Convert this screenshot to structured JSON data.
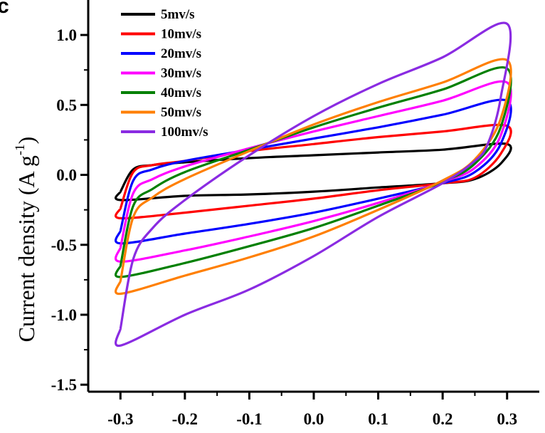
{
  "chart_data": {
    "type": "line",
    "panel_label": "c",
    "xlabel": "",
    "ylabel": "Current density (A g",
    "ylabel_sup": "-1",
    "ylabel_close": ")",
    "xlim": [
      -0.35,
      0.35
    ],
    "ylim": [
      -1.55,
      1.25
    ],
    "xticks": [
      -0.3,
      -0.2,
      -0.1,
      0.0,
      0.1,
      0.2,
      0.3
    ],
    "xtick_labels": [
      "-0.3",
      "-0.2",
      "-0.1",
      "0.0",
      "0.1",
      "0.2",
      "0.3"
    ],
    "yticks": [
      -1.5,
      -1.0,
      -0.5,
      0.0,
      0.5,
      1.0
    ],
    "ytick_labels": [
      "-1.5",
      "-1.0",
      "-0.5",
      "0.0",
      "0.5",
      "1.0"
    ],
    "grid": false,
    "legend_position": "top-left",
    "series": [
      {
        "name": "5mv/s",
        "color": "#000000",
        "anodic": [
          [
            -0.3,
            -0.12
          ],
          [
            -0.28,
            0.04
          ],
          [
            -0.25,
            0.07
          ],
          [
            -0.2,
            0.09
          ],
          [
            -0.1,
            0.12
          ],
          [
            0,
            0.14
          ],
          [
            0.1,
            0.16
          ],
          [
            0.2,
            0.18
          ],
          [
            0.3,
            0.22
          ]
        ],
        "cathodic": [
          [
            0.3,
            0.22
          ],
          [
            0.29,
            0.08
          ],
          [
            0.25,
            -0.03
          ],
          [
            0.2,
            -0.06
          ],
          [
            0.1,
            -0.09
          ],
          [
            0,
            -0.12
          ],
          [
            -0.1,
            -0.14
          ],
          [
            -0.2,
            -0.15
          ],
          [
            -0.3,
            -0.18
          ]
        ]
      },
      {
        "name": "10mv/s",
        "color": "#ff0000",
        "anodic": [
          [
            -0.3,
            -0.24
          ],
          [
            -0.28,
            0.02
          ],
          [
            -0.25,
            0.07
          ],
          [
            -0.2,
            0.1
          ],
          [
            -0.1,
            0.17
          ],
          [
            0,
            0.22
          ],
          [
            0.1,
            0.27
          ],
          [
            0.2,
            0.31
          ],
          [
            0.3,
            0.35
          ]
        ],
        "cathodic": [
          [
            0.3,
            0.35
          ],
          [
            0.29,
            0.15
          ],
          [
            0.25,
            -0.02
          ],
          [
            0.2,
            -0.06
          ],
          [
            0.1,
            -0.11
          ],
          [
            0,
            -0.17
          ],
          [
            -0.1,
            -0.22
          ],
          [
            -0.2,
            -0.27
          ],
          [
            -0.3,
            -0.31
          ]
        ]
      },
      {
        "name": "20mv/s",
        "color": "#0000ff",
        "anodic": [
          [
            -0.3,
            -0.4
          ],
          [
            -0.28,
            -0.04
          ],
          [
            -0.25,
            0.04
          ],
          [
            -0.2,
            0.1
          ],
          [
            -0.1,
            0.18
          ],
          [
            0,
            0.26
          ],
          [
            0.1,
            0.34
          ],
          [
            0.2,
            0.43
          ],
          [
            0.3,
            0.53
          ]
        ],
        "cathodic": [
          [
            0.3,
            0.53
          ],
          [
            0.29,
            0.22
          ],
          [
            0.25,
            0.02
          ],
          [
            0.2,
            -0.06
          ],
          [
            0.1,
            -0.17
          ],
          [
            0,
            -0.27
          ],
          [
            -0.1,
            -0.35
          ],
          [
            -0.2,
            -0.42
          ],
          [
            -0.3,
            -0.49
          ]
        ]
      },
      {
        "name": "30mv/s",
        "color": "#ff00ff",
        "anodic": [
          [
            -0.3,
            -0.52
          ],
          [
            -0.28,
            -0.13
          ],
          [
            -0.25,
            -0.03
          ],
          [
            -0.2,
            0.06
          ],
          [
            -0.1,
            0.19
          ],
          [
            0,
            0.31
          ],
          [
            0.1,
            0.42
          ],
          [
            0.2,
            0.53
          ],
          [
            0.3,
            0.66
          ]
        ],
        "cathodic": [
          [
            0.3,
            0.66
          ],
          [
            0.29,
            0.28
          ],
          [
            0.25,
            0.05
          ],
          [
            0.2,
            -0.05
          ],
          [
            0.1,
            -0.2
          ],
          [
            0,
            -0.33
          ],
          [
            -0.1,
            -0.44
          ],
          [
            -0.2,
            -0.54
          ],
          [
            -0.3,
            -0.62
          ]
        ]
      },
      {
        "name": "40mv/s",
        "color": "#008000",
        "anodic": [
          [
            -0.3,
            -0.65
          ],
          [
            -0.28,
            -0.22
          ],
          [
            -0.25,
            -0.1
          ],
          [
            -0.2,
            0.02
          ],
          [
            -0.1,
            0.18
          ],
          [
            0,
            0.34
          ],
          [
            0.1,
            0.48
          ],
          [
            0.2,
            0.61
          ],
          [
            0.3,
            0.76
          ]
        ],
        "cathodic": [
          [
            0.3,
            0.76
          ],
          [
            0.29,
            0.34
          ],
          [
            0.25,
            0.08
          ],
          [
            0.2,
            -0.05
          ],
          [
            0.1,
            -0.22
          ],
          [
            0,
            -0.38
          ],
          [
            -0.1,
            -0.51
          ],
          [
            -0.2,
            -0.63
          ],
          [
            -0.3,
            -0.73
          ]
        ]
      },
      {
        "name": "50mv/s",
        "color": "#ff7f00",
        "anodic": [
          [
            -0.3,
            -0.76
          ],
          [
            -0.28,
            -0.3
          ],
          [
            -0.25,
            -0.16
          ],
          [
            -0.2,
            -0.03
          ],
          [
            -0.1,
            0.17
          ],
          [
            0,
            0.36
          ],
          [
            0.1,
            0.52
          ],
          [
            0.2,
            0.66
          ],
          [
            0.3,
            0.82
          ]
        ],
        "cathodic": [
          [
            0.3,
            0.82
          ],
          [
            0.29,
            0.4
          ],
          [
            0.25,
            0.11
          ],
          [
            0.2,
            -0.04
          ],
          [
            0.1,
            -0.25
          ],
          [
            0,
            -0.44
          ],
          [
            -0.1,
            -0.59
          ],
          [
            -0.2,
            -0.72
          ],
          [
            -0.3,
            -0.85
          ]
        ]
      },
      {
        "name": "100mv/s",
        "color": "#8a2be2",
        "anodic": [
          [
            -0.3,
            -1.1
          ],
          [
            -0.28,
            -0.6
          ],
          [
            -0.25,
            -0.38
          ],
          [
            -0.2,
            -0.18
          ],
          [
            -0.1,
            0.14
          ],
          [
            0,
            0.42
          ],
          [
            0.1,
            0.65
          ],
          [
            0.2,
            0.84
          ],
          [
            0.3,
            1.08
          ]
        ],
        "cathodic": [
          [
            0.3,
            1.08
          ],
          [
            0.29,
            0.55
          ],
          [
            0.27,
            0.22
          ],
          [
            0.25,
            0.1
          ],
          [
            0.2,
            -0.06
          ],
          [
            0.1,
            -0.3
          ],
          [
            0,
            -0.58
          ],
          [
            -0.1,
            -0.82
          ],
          [
            -0.2,
            -1.0
          ],
          [
            -0.3,
            -1.22
          ]
        ]
      }
    ]
  }
}
